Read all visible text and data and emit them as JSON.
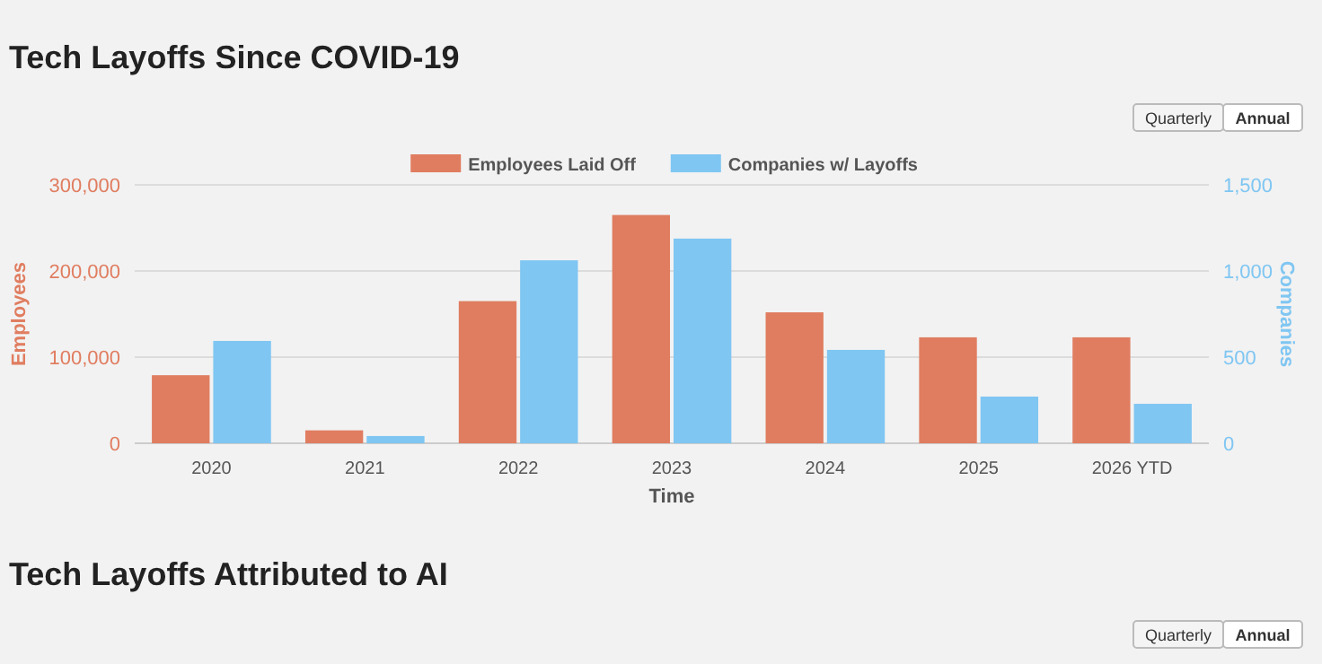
{
  "chart_data": [
    {
      "type": "bar",
      "title": "Tech Layoffs Since COVID-19",
      "xlabel": "Time",
      "ylabel": "Employees",
      "y2label": "Companies",
      "categories": [
        "2020",
        "2021",
        "2022",
        "2023",
        "2024",
        "2025",
        "2026 YTD"
      ],
      "series": [
        {
          "name": "Employees Laid Off",
          "color": "#e07d60",
          "values": [
            79000,
            15000,
            165000,
            265000,
            152000,
            123000,
            123000
          ]
        },
        {
          "name": "Companies w/ Layoffs",
          "color": "#7fc6f2",
          "axis": "y2",
          "values": [
            594,
            42,
            1062,
            1188,
            542,
            271,
            229
          ]
        }
      ],
      "ylim": [
        0,
        300000
      ],
      "yticks": [
        0,
        {
          "value": 100000,
          "label": "100,000"
        },
        {
          "value": 200000,
          "label": "200,000"
        },
        {
          "value": 300000,
          "label": "300,000"
        }
      ],
      "y2lim": [
        0,
        1500
      ],
      "y2ticks": [
        0,
        500,
        {
          "value": 1000,
          "label": "1,000"
        },
        {
          "value": 1500,
          "label": "1,500"
        }
      ],
      "grid": "y",
      "legend": "top",
      "annotations": [
        "Quarterly",
        "Annual"
      ]
    },
    {
      "type": "other",
      "title": "Tech Layoffs Attributed to AI",
      "annotations": [
        "Quarterly",
        "Annual"
      ]
    }
  ]
}
